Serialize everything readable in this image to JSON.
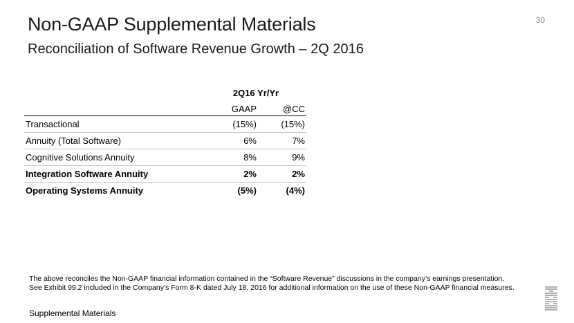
{
  "header": {
    "title": "Non-GAAP Supplemental Materials",
    "subtitle": "Reconciliation of Software Revenue Growth – 2Q 2016",
    "page_number": "30"
  },
  "table": {
    "group_header": "2Q16 Yr/Yr",
    "columns": [
      "GAAP",
      "@CC"
    ],
    "rows": [
      {
        "label": "Transactional",
        "gaap": "(15%)",
        "cc": "(15%)"
      },
      {
        "label": "Annuity (Total Software)",
        "gaap": "6%",
        "cc": "7%"
      },
      {
        "label": "Cognitive Solutions Annuity",
        "gaap": "8%",
        "cc": "9%"
      },
      {
        "label": "Integration Software Annuity",
        "gaap": "2%",
        "cc": "2%"
      },
      {
        "label": "Operating Systems Annuity",
        "gaap": "(5%)",
        "cc": "(4%)"
      }
    ]
  },
  "footnote": {
    "line1": "The above reconciles the Non-GAAP financial information contained in the “Software Revenue” discussions in the company’s earnings presentation.",
    "line2": "See Exhibit 99.2 included in the Company’s Form 8-K dated July 18, 2016  for additional information on the use of these Non-GAAP financial measures."
  },
  "footer": {
    "label": "Supplemental Materials",
    "logo_text": "IBM"
  },
  "colors": {
    "text": "#000000",
    "title": "#1a1a1a",
    "page_number": "#8c8c8c",
    "row_divider": "#c8c8c8",
    "logo": "#b0b0b0"
  }
}
